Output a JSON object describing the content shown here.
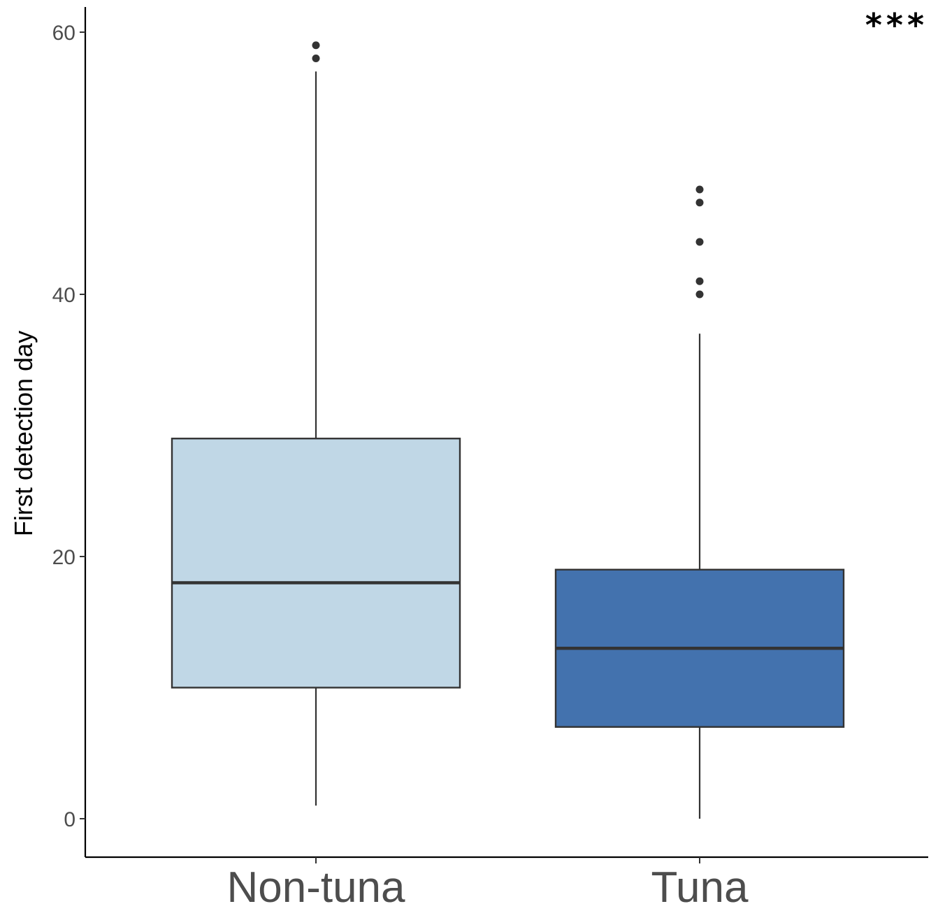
{
  "chart_data": {
    "type": "box",
    "title": "",
    "xlabel": "",
    "ylabel": "First detection day",
    "ylim": [
      -3,
      62
    ],
    "yticks": [
      0,
      20,
      40,
      60
    ],
    "grid": false,
    "legend": "none",
    "annotation": "***",
    "categories": [
      "Non-tuna",
      "Tuna"
    ],
    "boxes": [
      {
        "category": "Non-tuna",
        "fill": "#c0d7e6",
        "whisker_low": 1,
        "q1": 10,
        "median": 18,
        "q3": 29,
        "whisker_high": 57,
        "outliers": [
          58,
          59
        ]
      },
      {
        "category": "Tuna",
        "fill": "#4372ae",
        "whisker_low": 0,
        "q1": 7,
        "median": 13,
        "q3": 19,
        "whisker_high": 37,
        "outliers": [
          40,
          41,
          44,
          47,
          48
        ]
      }
    ],
    "colors": {
      "box_stroke": "#333333",
      "axis": "#000000",
      "tick_text": "#4d4d4d"
    }
  }
}
